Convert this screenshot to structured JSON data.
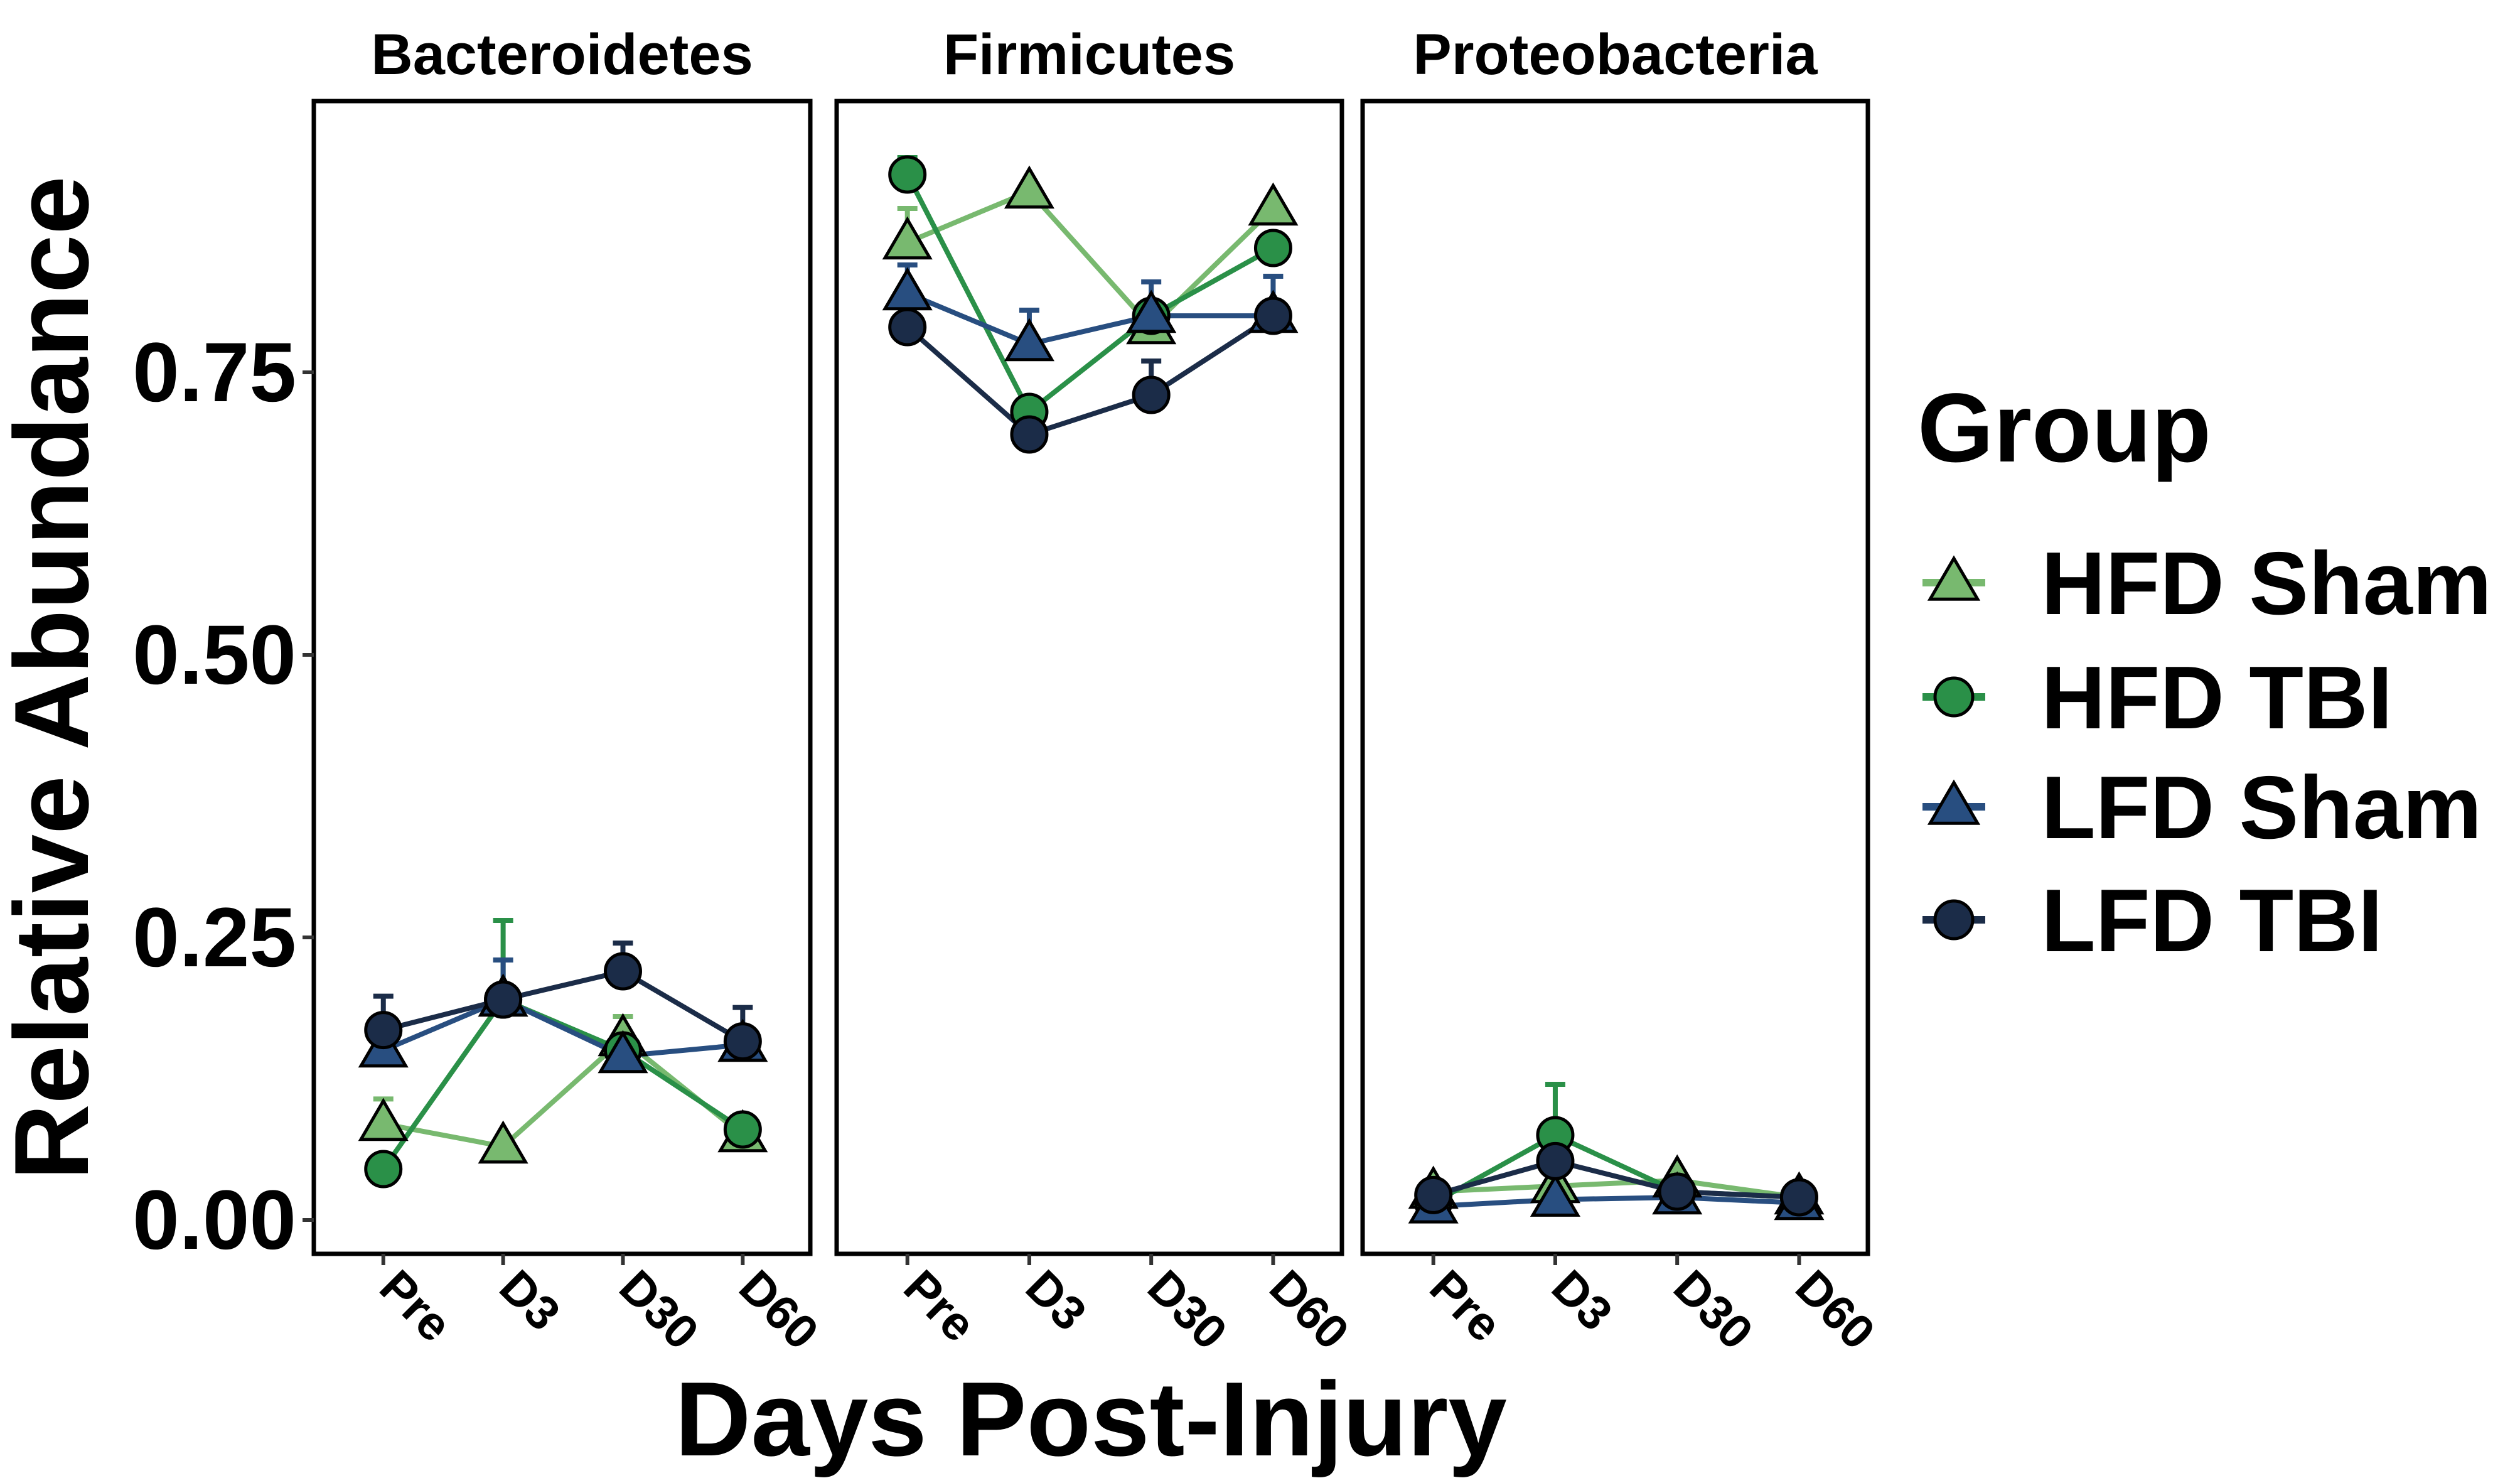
{
  "chart_data": {
    "type": "line",
    "facet_labels": [
      "Bacteroidetes",
      "Firmicutes",
      "Proteobacteria"
    ],
    "categories": [
      "Pre",
      "D3",
      "D30",
      "D60"
    ],
    "xlabel": "Days Post-Injury",
    "ylabel": "Relative Abundance",
    "yticks": [
      "0.00",
      "0.25",
      "0.50",
      "0.75"
    ],
    "ylim": [
      -0.03,
      0.99
    ],
    "grid": false,
    "legend": {
      "title": "Group",
      "position": "right",
      "entries": [
        "HFD Sham",
        "HFD TBI",
        "LFD Sham",
        "LFD TBI"
      ]
    },
    "series": [
      {
        "name": "HFD Sham",
        "color": "#78b96f",
        "marker": "triangle",
        "values": {
          "Bacteroidetes": [
            0.085,
            0.065,
            0.16,
            0.075
          ],
          "Firmicutes": [
            0.865,
            0.91,
            0.79,
            0.895
          ],
          "Proteobacteria": [
            0.025,
            0.03,
            0.035,
            0.02
          ]
        },
        "error": {
          "Bacteroidetes": [
            0.022,
            0.0,
            0.02,
            0.0
          ],
          "Firmicutes": [
            0.03,
            0.0,
            0.0,
            0.0
          ],
          "Proteobacteria": [
            0.0,
            0.0,
            0.0,
            0.0
          ]
        }
      },
      {
        "name": "HFD TBI",
        "color": "#2a9048",
        "marker": "circle",
        "values": {
          "Bacteroidetes": [
            0.045,
            0.195,
            0.15,
            0.08
          ],
          "Firmicutes": [
            0.925,
            0.715,
            0.8,
            0.86
          ],
          "Proteobacteria": [
            0.015,
            0.075,
            0.025,
            0.02
          ]
        },
        "error": {
          "Bacteroidetes": [
            0.0,
            0.07,
            0.0,
            0.0
          ],
          "Firmicutes": [
            0.015,
            0.0,
            0.0,
            0.0
          ],
          "Proteobacteria": [
            0.0,
            0.045,
            0.0,
            0.0
          ]
        }
      },
      {
        "name": "LFD Sham",
        "color": "#284e80",
        "marker": "triangle",
        "values": {
          "Bacteroidetes": [
            0.15,
            0.195,
            0.145,
            0.155
          ],
          "Firmicutes": [
            0.82,
            0.775,
            0.8,
            0.8
          ],
          "Proteobacteria": [
            0.012,
            0.018,
            0.02,
            0.015
          ]
        },
        "error": {
          "Bacteroidetes": [
            0.0,
            0.035,
            0.0,
            0.0
          ],
          "Firmicutes": [
            0.025,
            0.03,
            0.03,
            0.035
          ],
          "Proteobacteria": [
            0.0,
            0.0,
            0.0,
            0.0
          ]
        }
      },
      {
        "name": "LFD TBI",
        "color": "#1b2c48",
        "marker": "circle",
        "values": {
          "Bacteroidetes": [
            0.168,
            0.195,
            0.22,
            0.158
          ],
          "Firmicutes": [
            0.79,
            0.695,
            0.73,
            0.8
          ],
          "Proteobacteria": [
            0.022,
            0.052,
            0.025,
            0.02
          ]
        },
        "error": {
          "Bacteroidetes": [
            0.03,
            0.0,
            0.025,
            0.03
          ],
          "Firmicutes": [
            0.0,
            0.0,
            0.03,
            0.0
          ],
          "Proteobacteria": [
            0.0,
            0.0,
            0.0,
            0.0
          ]
        }
      }
    ]
  }
}
